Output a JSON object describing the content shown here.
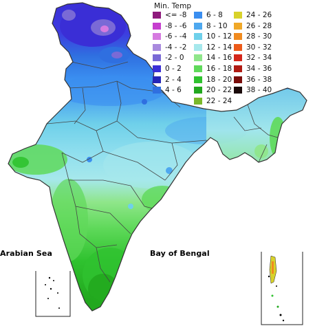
{
  "legend": {
    "title": "Min. Temp",
    "items": [
      {
        "label": "<= -8",
        "color": "#8e1a7c"
      },
      {
        "label": "-8 - -6",
        "color": "#c63fcf"
      },
      {
        "label": "-6 - -4",
        "color": "#d67be0"
      },
      {
        "label": "-4 - -2",
        "color": "#a98ade"
      },
      {
        "label": "-2 - 0",
        "color": "#7a6ad6"
      },
      {
        "label": "0 - 2",
        "color": "#3a2ed6"
      },
      {
        "label": "2 - 4",
        "color": "#2626b8"
      },
      {
        "label": "4 - 6",
        "color": "#2f6fe0"
      },
      {
        "label": "6 - 8",
        "color": "#3a8ef0"
      },
      {
        "label": "8 - 10",
        "color": "#4ea8ef"
      },
      {
        "label": "10 - 12",
        "color": "#6fd0ea"
      },
      {
        "label": "12 - 14",
        "color": "#a6e8ec"
      },
      {
        "label": "14 - 16",
        "color": "#8fe68a"
      },
      {
        "label": "16 - 18",
        "color": "#5fd95a"
      },
      {
        "label": "18 - 20",
        "color": "#2fc22f"
      },
      {
        "label": "20 - 22",
        "color": "#22a81e"
      },
      {
        "label": "22 - 24",
        "color": "#7ab82a"
      },
      {
        "label": "24 - 26",
        "color": "#d8d22a"
      },
      {
        "label": "26 - 28",
        "color": "#f0a828"
      },
      {
        "label": "28 - 30",
        "color": "#f08a1e"
      },
      {
        "label": "30 - 32",
        "color": "#ec5a1a"
      },
      {
        "label": "32 - 34",
        "color": "#d4261a"
      },
      {
        "label": "34 - 36",
        "color": "#b01a12"
      },
      {
        "label": "36 - 38",
        "color": "#7a0c0a"
      },
      {
        "label": "38 - 40",
        "color": "#1a0a0a"
      }
    ]
  },
  "labels": {
    "arabian_sea": "Arabian Sea",
    "bay_of_bengal": "Bay of Bengal"
  }
}
